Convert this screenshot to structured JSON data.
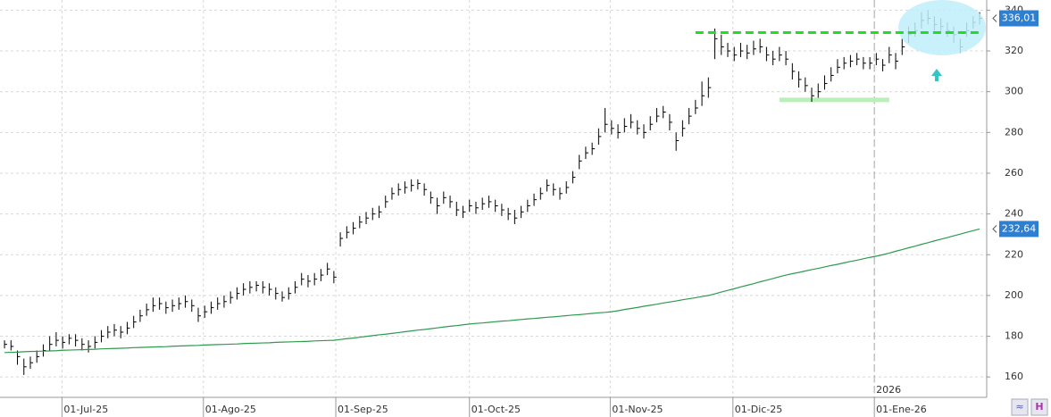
{
  "chart_data": {
    "type": "ohlc",
    "ylim": [
      150,
      345
    ],
    "yticks": [
      160,
      180,
      200,
      220,
      240,
      260,
      280,
      300,
      320,
      340
    ],
    "xlim": [
      -0.7,
      152.1
    ],
    "xticks": [
      {
        "value": 8.9,
        "label": "01-Jul-25"
      },
      {
        "value": 30.8,
        "label": "01-Ago-25"
      },
      {
        "value": 51.3,
        "label": "01-Sep-25"
      },
      {
        "value": 72,
        "label": "01-Oct-25"
      },
      {
        "value": 93.8,
        "label": "01-Nov-25"
      },
      {
        "value": 112.8,
        "label": "01-Dic-25"
      },
      {
        "value": 134.7,
        "label": "01-Ene-26"
      }
    ],
    "year_marker": {
      "value": 134.7,
      "label": "2026"
    },
    "grid": true,
    "series": [
      {
        "kind": "ohlc",
        "color": "#000000",
        "close": [
          176,
          175,
          170,
          165,
          167,
          170,
          173,
          176,
          178,
          177,
          179,
          178,
          176,
          175,
          177,
          180,
          182,
          183,
          182,
          184,
          187,
          190,
          193,
          195,
          196,
          194,
          195,
          196,
          197,
          195,
          190,
          192,
          194,
          196,
          197,
          199,
          201,
          203,
          204,
          205,
          204,
          203,
          201,
          199,
          201,
          204,
          208,
          207,
          208,
          210,
          213,
          209,
          228,
          231,
          233,
          236,
          238,
          240,
          241,
          246,
          250,
          252,
          253,
          254,
          255,
          252,
          248,
          244,
          248,
          246,
          242,
          241,
          244,
          243,
          245,
          246,
          244,
          242,
          240,
          238,
          241,
          244,
          247,
          250,
          254,
          252,
          250,
          253,
          258,
          266,
          270,
          272,
          278,
          284,
          282,
          280,
          283,
          285,
          282,
          280,
          284,
          288,
          290,
          285,
          276,
          282,
          288,
          292,
          298,
          302,
          326,
          322,
          320,
          318,
          320,
          319,
          321,
          322,
          318,
          316,
          318,
          316,
          310,
          306,
          303,
          298,
          300,
          304,
          308,
          312,
          314,
          315,
          316,
          314,
          314,
          316,
          313,
          318,
          315,
          322,
          328,
          330,
          335,
          336,
          333,
          332,
          330,
          328,
          322,
          330,
          334,
          336.01
        ],
        "high": [
          178,
          178,
          173,
          169,
          170,
          173,
          176,
          180,
          182,
          180,
          181,
          181,
          179,
          178,
          180,
          183,
          185,
          186,
          185,
          187,
          190,
          193,
          196,
          199,
          199,
          197,
          198,
          199,
          200,
          198,
          194,
          195,
          197,
          199,
          200,
          202,
          204,
          206,
          207,
          207,
          207,
          206,
          204,
          202,
          204,
          207,
          211,
          210,
          211,
          213,
          216,
          212,
          231,
          234,
          236,
          239,
          241,
          243,
          244,
          249,
          253,
          255,
          256,
          257,
          257,
          255,
          251,
          248,
          251,
          249,
          246,
          244,
          247,
          246,
          248,
          249,
          247,
          245,
          243,
          242,
          244,
          247,
          250,
          253,
          257,
          255,
          253,
          256,
          261,
          269,
          273,
          275,
          282,
          292,
          286,
          284,
          287,
          289,
          286,
          284,
          288,
          292,
          293,
          289,
          280,
          286,
          292,
          296,
          305,
          307,
          331,
          328,
          324,
          322,
          324,
          323,
          325,
          326,
          322,
          320,
          322,
          320,
          314,
          310,
          307,
          302,
          304,
          308,
          312,
          316,
          317,
          318,
          319,
          317,
          317,
          319,
          316,
          322,
          319,
          326,
          332,
          334,
          339,
          340,
          337,
          336,
          334,
          332,
          326,
          334,
          337,
          339
        ],
        "low": [
          174,
          173,
          166,
          161,
          164,
          167,
          170,
          173,
          175,
          174,
          176,
          175,
          173,
          172,
          174,
          177,
          179,
          180,
          179,
          181,
          184,
          187,
          190,
          192,
          193,
          191,
          192,
          193,
          194,
          192,
          187,
          189,
          191,
          193,
          194,
          196,
          198,
          200,
          201,
          202,
          201,
          200,
          198,
          197,
          198,
          201,
          205,
          204,
          205,
          207,
          210,
          206,
          224,
          228,
          230,
          233,
          235,
          237,
          238,
          243,
          247,
          249,
          250,
          251,
          252,
          249,
          245,
          240,
          245,
          243,
          239,
          238,
          241,
          240,
          242,
          243,
          241,
          239,
          237,
          235,
          238,
          241,
          244,
          247,
          251,
          249,
          247,
          250,
          255,
          262,
          267,
          269,
          274,
          280,
          279,
          277,
          280,
          282,
          279,
          277,
          281,
          285,
          287,
          281,
          271,
          278,
          284,
          289,
          293,
          297,
          316,
          318,
          317,
          315,
          317,
          316,
          318,
          319,
          315,
          313,
          315,
          313,
          306,
          302,
          300,
          295,
          297,
          301,
          305,
          309,
          311,
          312,
          313,
          311,
          311,
          313,
          310,
          314,
          311,
          318,
          324,
          327,
          331,
          333,
          330,
          329,
          327,
          324,
          319,
          327,
          331,
          333
        ]
      },
      {
        "kind": "line",
        "color": "#2e9a4e",
        "values": [
          172.0,
          172.1,
          172.2,
          172.4,
          172.5,
          172.6,
          172.7,
          172.8,
          172.9,
          173.1,
          173.2,
          173.3,
          173.4,
          173.5,
          173.6,
          173.8,
          173.9,
          174.0,
          174.1,
          174.2,
          174.4,
          174.5,
          174.6,
          174.7,
          174.8,
          174.9,
          175.1,
          175.2,
          175.3,
          175.4,
          175.5,
          175.7,
          175.8,
          175.9,
          176.0,
          176.1,
          176.2,
          176.4,
          176.5,
          176.6,
          176.7,
          176.8,
          177.0,
          177.1,
          177.2,
          177.3,
          177.4,
          177.5,
          177.7,
          177.8,
          177.9,
          178.0,
          178.4,
          178.8,
          179.1,
          179.5,
          179.9,
          180.3,
          180.7,
          181.0,
          181.4,
          181.8,
          182.2,
          182.6,
          183.0,
          183.3,
          183.7,
          184.1,
          184.5,
          184.9,
          185.2,
          185.6,
          186.0,
          186.3,
          186.5,
          186.8,
          187.1,
          187.4,
          187.6,
          187.9,
          188.2,
          188.5,
          188.7,
          189.0,
          189.3,
          189.5,
          189.8,
          190.1,
          190.4,
          190.6,
          190.9,
          191.2,
          191.5,
          191.7,
          192.0,
          192.5,
          193.1,
          193.6,
          194.1,
          194.7,
          195.2,
          195.7,
          196.3,
          196.8,
          197.3,
          197.9,
          198.4,
          198.9,
          199.5,
          200.0,
          200.8,
          201.7,
          202.5,
          203.3,
          204.2,
          205.0,
          205.8,
          206.7,
          207.5,
          208.3,
          209.2,
          210.0,
          210.7,
          211.3,
          212.0,
          212.7,
          213.3,
          214.0,
          214.7,
          215.3,
          216.0,
          216.7,
          217.3,
          218.0,
          218.7,
          219.3,
          220.0,
          220.8,
          221.7,
          222.5,
          223.4,
          224.2,
          225.1,
          225.9,
          226.8,
          227.6,
          228.4,
          229.3,
          230.1,
          231.0,
          231.8,
          232.64
        ]
      }
    ],
    "price_tags": [
      {
        "value": 336.01,
        "label": "336,01"
      },
      {
        "value": 232.64,
        "label": "232,64"
      }
    ],
    "lines": [
      {
        "value": 329,
        "x": [
          107,
          151
        ],
        "color": "#22dd22",
        "dashed": true
      },
      {
        "value": 296,
        "x": [
          120,
          137
        ],
        "color": "#b8f0b8",
        "dashed": false
      }
    ]
  }
}
